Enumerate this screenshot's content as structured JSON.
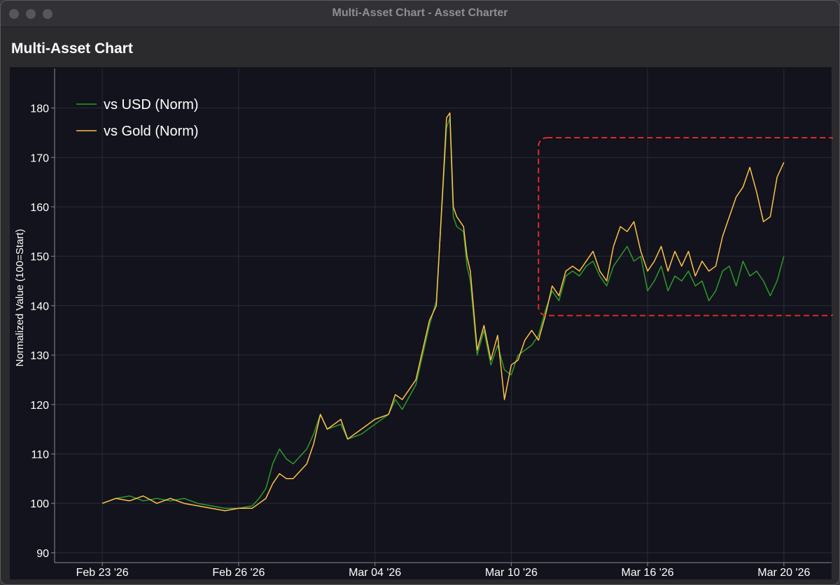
{
  "window": {
    "title": "Multi-Asset Chart - Asset Charter"
  },
  "header": {
    "title": "Multi-Asset Chart"
  },
  "colors": {
    "usd": "#2e9a2a",
    "gold": "#ffc04a",
    "highlight": "#e02a2a",
    "background": "#12131c",
    "grid": "#2a2c38"
  },
  "chart_data": {
    "type": "line",
    "title": "",
    "xlabel": "",
    "ylabel": "Normalized Value (100=Start)",
    "ylim": [
      88,
      188
    ],
    "yticks": [
      90,
      100,
      110,
      120,
      130,
      140,
      150,
      160,
      170,
      180
    ],
    "xlim": [
      -0.07,
      1.07
    ],
    "xticks": [
      {
        "pos": 0.0,
        "label": "Feb 23 '26"
      },
      {
        "pos": 0.2,
        "label": "Feb 26 '26"
      },
      {
        "pos": 0.4,
        "label": "Mar 04 '26"
      },
      {
        "pos": 0.6,
        "label": "Mar 10 '26"
      },
      {
        "pos": 0.8,
        "label": "Mar 16 '26"
      },
      {
        "pos": 1.0,
        "label": "Mar 20 '26"
      }
    ],
    "grid": true,
    "legend_position": "top-left",
    "series": [
      {
        "name": "vs USD (Norm)",
        "color": "#2e9a2a",
        "points": [
          [
            0,
            100
          ],
          [
            0.02,
            101
          ],
          [
            0.04,
            101.5
          ],
          [
            0.06,
            100.5
          ],
          [
            0.08,
            101
          ],
          [
            0.1,
            100.5
          ],
          [
            0.12,
            101
          ],
          [
            0.14,
            100
          ],
          [
            0.16,
            99.5
          ],
          [
            0.18,
            99
          ],
          [
            0.2,
            99
          ],
          [
            0.22,
            99.5
          ],
          [
            0.23,
            101
          ],
          [
            0.24,
            103
          ],
          [
            0.25,
            108
          ],
          [
            0.26,
            111
          ],
          [
            0.27,
            109
          ],
          [
            0.28,
            108
          ],
          [
            0.3,
            111
          ],
          [
            0.31,
            114
          ],
          [
            0.32,
            118
          ],
          [
            0.33,
            115
          ],
          [
            0.35,
            116
          ],
          [
            0.36,
            113
          ],
          [
            0.38,
            114
          ],
          [
            0.4,
            116
          ],
          [
            0.42,
            118
          ],
          [
            0.43,
            121
          ],
          [
            0.44,
            119
          ],
          [
            0.46,
            124
          ],
          [
            0.47,
            130
          ],
          [
            0.48,
            136
          ],
          [
            0.49,
            141
          ],
          [
            0.5,
            164
          ],
          [
            0.505,
            176
          ],
          [
            0.51,
            178
          ],
          [
            0.515,
            158
          ],
          [
            0.52,
            156
          ],
          [
            0.53,
            155
          ],
          [
            0.535,
            148
          ],
          [
            0.54,
            145
          ],
          [
            0.55,
            130
          ],
          [
            0.56,
            135
          ],
          [
            0.57,
            128
          ],
          [
            0.58,
            132
          ],
          [
            0.59,
            127
          ],
          [
            0.6,
            126
          ],
          [
            0.61,
            130
          ],
          [
            0.62,
            131
          ],
          [
            0.63,
            132
          ],
          [
            0.64,
            134
          ],
          [
            0.65,
            139
          ],
          [
            0.66,
            143
          ],
          [
            0.67,
            141
          ],
          [
            0.68,
            146
          ],
          [
            0.69,
            147
          ],
          [
            0.7,
            146
          ],
          [
            0.71,
            148
          ],
          [
            0.72,
            149
          ],
          [
            0.73,
            146
          ],
          [
            0.74,
            144
          ],
          [
            0.75,
            148
          ],
          [
            0.76,
            150
          ],
          [
            0.77,
            152
          ],
          [
            0.78,
            149
          ],
          [
            0.79,
            150
          ],
          [
            0.8,
            143
          ],
          [
            0.81,
            145
          ],
          [
            0.82,
            148
          ],
          [
            0.83,
            143
          ],
          [
            0.84,
            146
          ],
          [
            0.85,
            145
          ],
          [
            0.86,
            147
          ],
          [
            0.87,
            144
          ],
          [
            0.88,
            145
          ],
          [
            0.89,
            141
          ],
          [
            0.9,
            143
          ],
          [
            0.91,
            147
          ],
          [
            0.92,
            148
          ],
          [
            0.93,
            144
          ],
          [
            0.94,
            149
          ],
          [
            0.95,
            146
          ],
          [
            0.96,
            147
          ],
          [
            0.97,
            145
          ],
          [
            0.98,
            142
          ],
          [
            0.99,
            145
          ],
          [
            1.0,
            150
          ]
        ]
      },
      {
        "name": "vs Gold (Norm)",
        "color": "#ffc04a",
        "points": [
          [
            0,
            100
          ],
          [
            0.02,
            101
          ],
          [
            0.04,
            100.5
          ],
          [
            0.06,
            101.5
          ],
          [
            0.08,
            100
          ],
          [
            0.1,
            101
          ],
          [
            0.12,
            100
          ],
          [
            0.14,
            99.5
          ],
          [
            0.16,
            99
          ],
          [
            0.18,
            98.5
          ],
          [
            0.2,
            99
          ],
          [
            0.22,
            99
          ],
          [
            0.23,
            100
          ],
          [
            0.24,
            101
          ],
          [
            0.25,
            104
          ],
          [
            0.26,
            106
          ],
          [
            0.27,
            105
          ],
          [
            0.28,
            105
          ],
          [
            0.3,
            108
          ],
          [
            0.31,
            112
          ],
          [
            0.32,
            118
          ],
          [
            0.33,
            115
          ],
          [
            0.35,
            117
          ],
          [
            0.36,
            113
          ],
          [
            0.38,
            115
          ],
          [
            0.4,
            117
          ],
          [
            0.42,
            118
          ],
          [
            0.43,
            122
          ],
          [
            0.44,
            121
          ],
          [
            0.46,
            125
          ],
          [
            0.47,
            131
          ],
          [
            0.48,
            137
          ],
          [
            0.49,
            140
          ],
          [
            0.5,
            165
          ],
          [
            0.505,
            178
          ],
          [
            0.51,
            179
          ],
          [
            0.515,
            160
          ],
          [
            0.52,
            158
          ],
          [
            0.53,
            156
          ],
          [
            0.535,
            150
          ],
          [
            0.54,
            147
          ],
          [
            0.55,
            131
          ],
          [
            0.56,
            136
          ],
          [
            0.57,
            129
          ],
          [
            0.58,
            134
          ],
          [
            0.59,
            121
          ],
          [
            0.6,
            128
          ],
          [
            0.61,
            129
          ],
          [
            0.62,
            133
          ],
          [
            0.63,
            135
          ],
          [
            0.64,
            133
          ],
          [
            0.65,
            138
          ],
          [
            0.66,
            144
          ],
          [
            0.67,
            142
          ],
          [
            0.68,
            147
          ],
          [
            0.69,
            148
          ],
          [
            0.7,
            147
          ],
          [
            0.71,
            149
          ],
          [
            0.72,
            151
          ],
          [
            0.73,
            147
          ],
          [
            0.74,
            145
          ],
          [
            0.75,
            152
          ],
          [
            0.76,
            156
          ],
          [
            0.77,
            155
          ],
          [
            0.78,
            157
          ],
          [
            0.79,
            151
          ],
          [
            0.8,
            147
          ],
          [
            0.81,
            149
          ],
          [
            0.82,
            152
          ],
          [
            0.83,
            147
          ],
          [
            0.84,
            151
          ],
          [
            0.85,
            148
          ],
          [
            0.86,
            151
          ],
          [
            0.87,
            146
          ],
          [
            0.88,
            149
          ],
          [
            0.89,
            147
          ],
          [
            0.9,
            148
          ],
          [
            0.91,
            154
          ],
          [
            0.92,
            158
          ],
          [
            0.93,
            162
          ],
          [
            0.94,
            164
          ],
          [
            0.95,
            168
          ],
          [
            0.96,
            163
          ],
          [
            0.97,
            157
          ],
          [
            0.98,
            158
          ],
          [
            0.99,
            166
          ],
          [
            1.0,
            169
          ]
        ]
      }
    ],
    "annotations": [
      {
        "type": "dashed-rect",
        "color": "#e02a2a",
        "x0": 0.64,
        "x1": 1.08,
        "y0": 138,
        "y1": 174
      }
    ]
  }
}
